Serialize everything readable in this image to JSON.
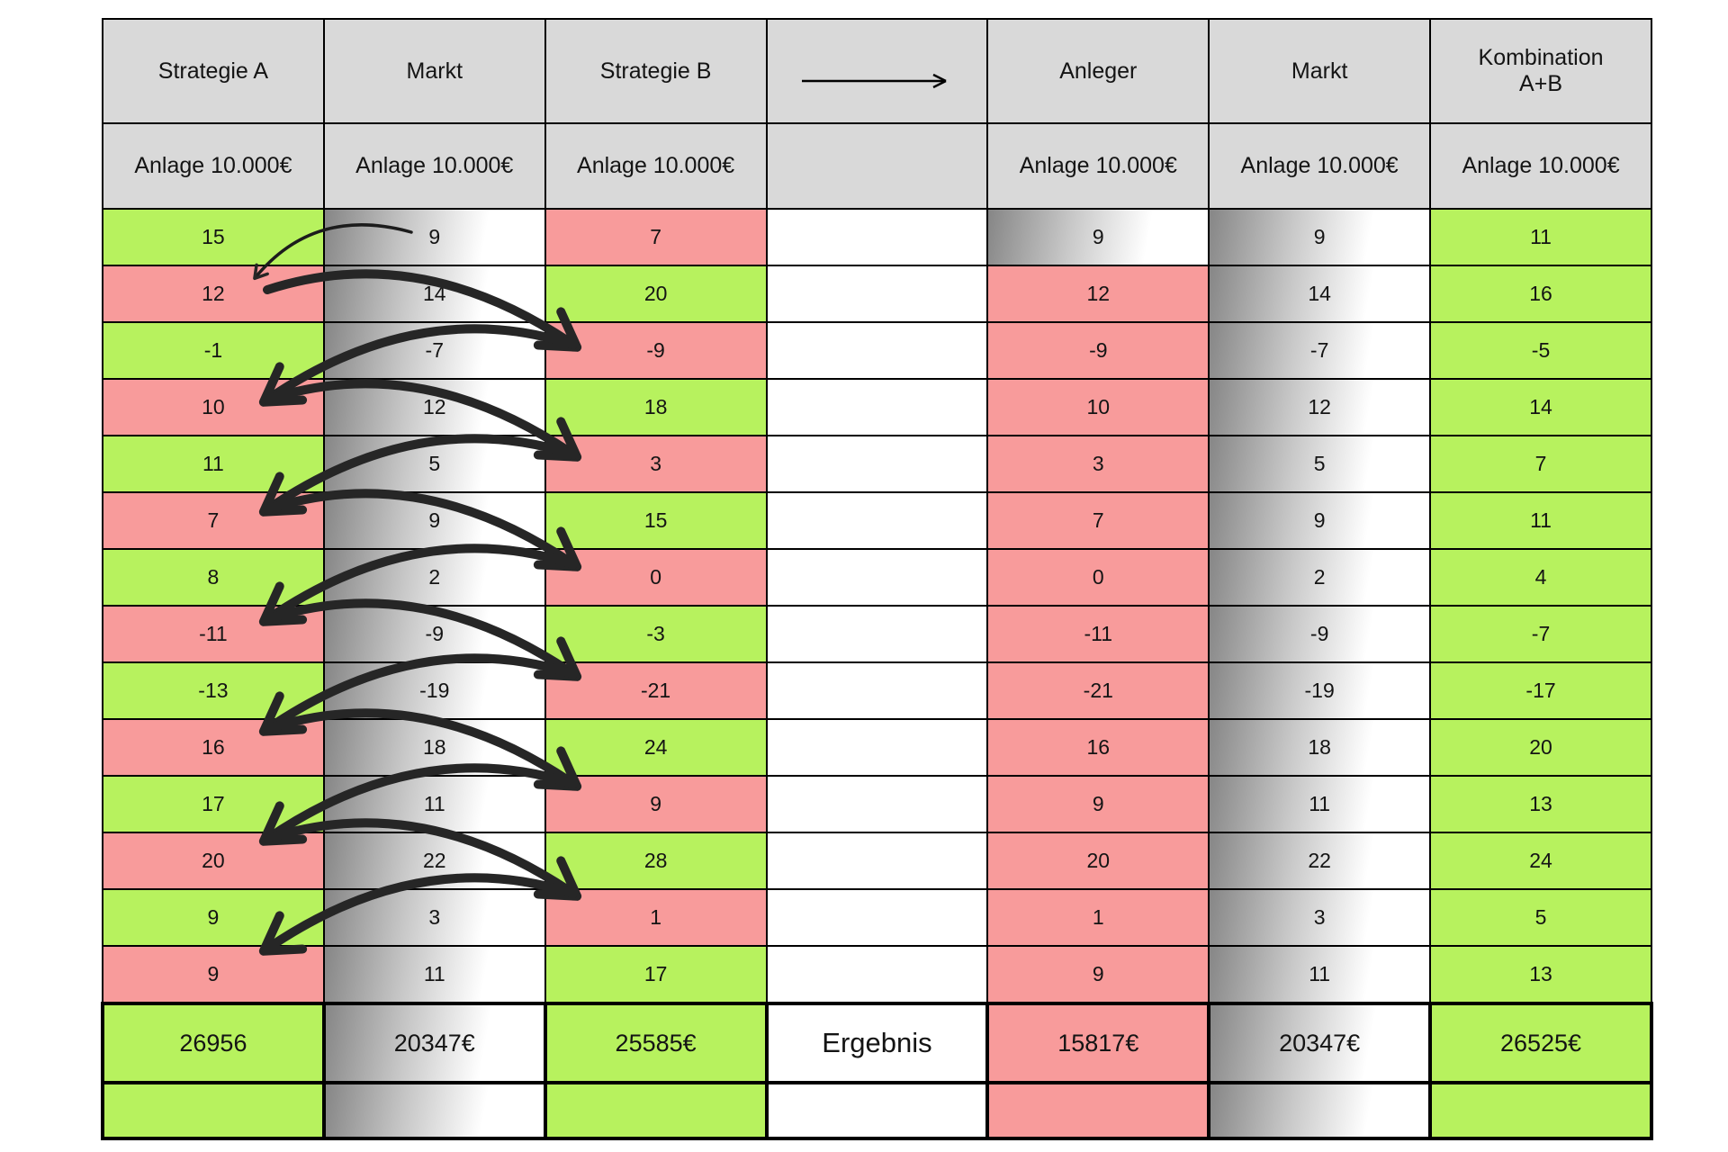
{
  "chart_data": {
    "type": "table",
    "title": "",
    "columns": [
      {
        "title": "Strategie A",
        "subtitle": "Anlage 10.000€"
      },
      {
        "title": "Markt",
        "subtitle": "Anlage 10.000€"
      },
      {
        "title": "Strategie B",
        "subtitle": "Anlage 10.000€"
      },
      {
        "title": "",
        "subtitle": ""
      },
      {
        "title": "Anleger",
        "subtitle": "Anlage 10.000€"
      },
      {
        "title": "Markt",
        "subtitle": "Anlage 10.000€"
      },
      {
        "title": "Kombination\nA+B",
        "subtitle": "Anlage 10.000€"
      }
    ],
    "rows": [
      {
        "a": "15",
        "a_bg": "green",
        "m1": "9",
        "b": "7",
        "b_bg": "red",
        "anl": "9",
        "anl_bg": "gradient",
        "m2": "9",
        "k": "11"
      },
      {
        "a": "12",
        "a_bg": "red",
        "m1": "14",
        "b": "20",
        "b_bg": "green",
        "anl": "12",
        "anl_bg": "red",
        "m2": "14",
        "k": "16"
      },
      {
        "a": "-1",
        "a_bg": "green",
        "m1": "-7",
        "b": "-9",
        "b_bg": "red",
        "anl": "-9",
        "anl_bg": "red",
        "m2": "-7",
        "k": "-5"
      },
      {
        "a": "10",
        "a_bg": "red",
        "m1": "12",
        "b": "18",
        "b_bg": "green",
        "anl": "10",
        "anl_bg": "red",
        "m2": "12",
        "k": "14"
      },
      {
        "a": "11",
        "a_bg": "green",
        "m1": "5",
        "b": "3",
        "b_bg": "red",
        "anl": "3",
        "anl_bg": "red",
        "m2": "5",
        "k": "7"
      },
      {
        "a": "7",
        "a_bg": "red",
        "m1": "9",
        "b": "15",
        "b_bg": "green",
        "anl": "7",
        "anl_bg": "red",
        "m2": "9",
        "k": "11"
      },
      {
        "a": "8",
        "a_bg": "green",
        "m1": "2",
        "b": "0",
        "b_bg": "red",
        "anl": "0",
        "anl_bg": "red",
        "m2": "2",
        "k": "4"
      },
      {
        "a": "-11",
        "a_bg": "red",
        "m1": "-9",
        "b": "-3",
        "b_bg": "green",
        "anl": "-11",
        "anl_bg": "red",
        "m2": "-9",
        "k": "-7"
      },
      {
        "a": "-13",
        "a_bg": "green",
        "m1": "-19",
        "b": "-21",
        "b_bg": "red",
        "anl": "-21",
        "anl_bg": "red",
        "m2": "-19",
        "k": "-17"
      },
      {
        "a": "16",
        "a_bg": "red",
        "m1": "18",
        "b": "24",
        "b_bg": "green",
        "anl": "16",
        "anl_bg": "red",
        "m2": "18",
        "k": "20"
      },
      {
        "a": "17",
        "a_bg": "green",
        "m1": "11",
        "b": "9",
        "b_bg": "red",
        "anl": "9",
        "anl_bg": "red",
        "m2": "11",
        "k": "13"
      },
      {
        "a": "20",
        "a_bg": "red",
        "m1": "22",
        "b": "28",
        "b_bg": "green",
        "anl": "20",
        "anl_bg": "red",
        "m2": "22",
        "k": "24"
      },
      {
        "a": "9",
        "a_bg": "green",
        "m1": "3",
        "b": "1",
        "b_bg": "red",
        "anl": "1",
        "anl_bg": "red",
        "m2": "3",
        "k": "5"
      },
      {
        "a": "9",
        "a_bg": "red",
        "m1": "11",
        "b": "17",
        "b_bg": "green",
        "anl": "9",
        "anl_bg": "red",
        "m2": "11",
        "k": "13"
      }
    ],
    "result_label": "Ergebnis",
    "results": {
      "a": "26956",
      "m1": "20347€",
      "b": "25585€",
      "anl": "15817€",
      "m2": "20347€",
      "k": "26525€"
    }
  },
  "icons": {
    "header_arrow": "long-right-arrow",
    "annotations": "hand-drawn-zigzag-arrows-between-strategie-a-and-strategie-b"
  },
  "colors": {
    "green": "#b7f25e",
    "red": "#f89b9b",
    "header_gray": "#d9d9d9",
    "gradient_dark": "#868686",
    "arrow_ink": "#262626"
  }
}
